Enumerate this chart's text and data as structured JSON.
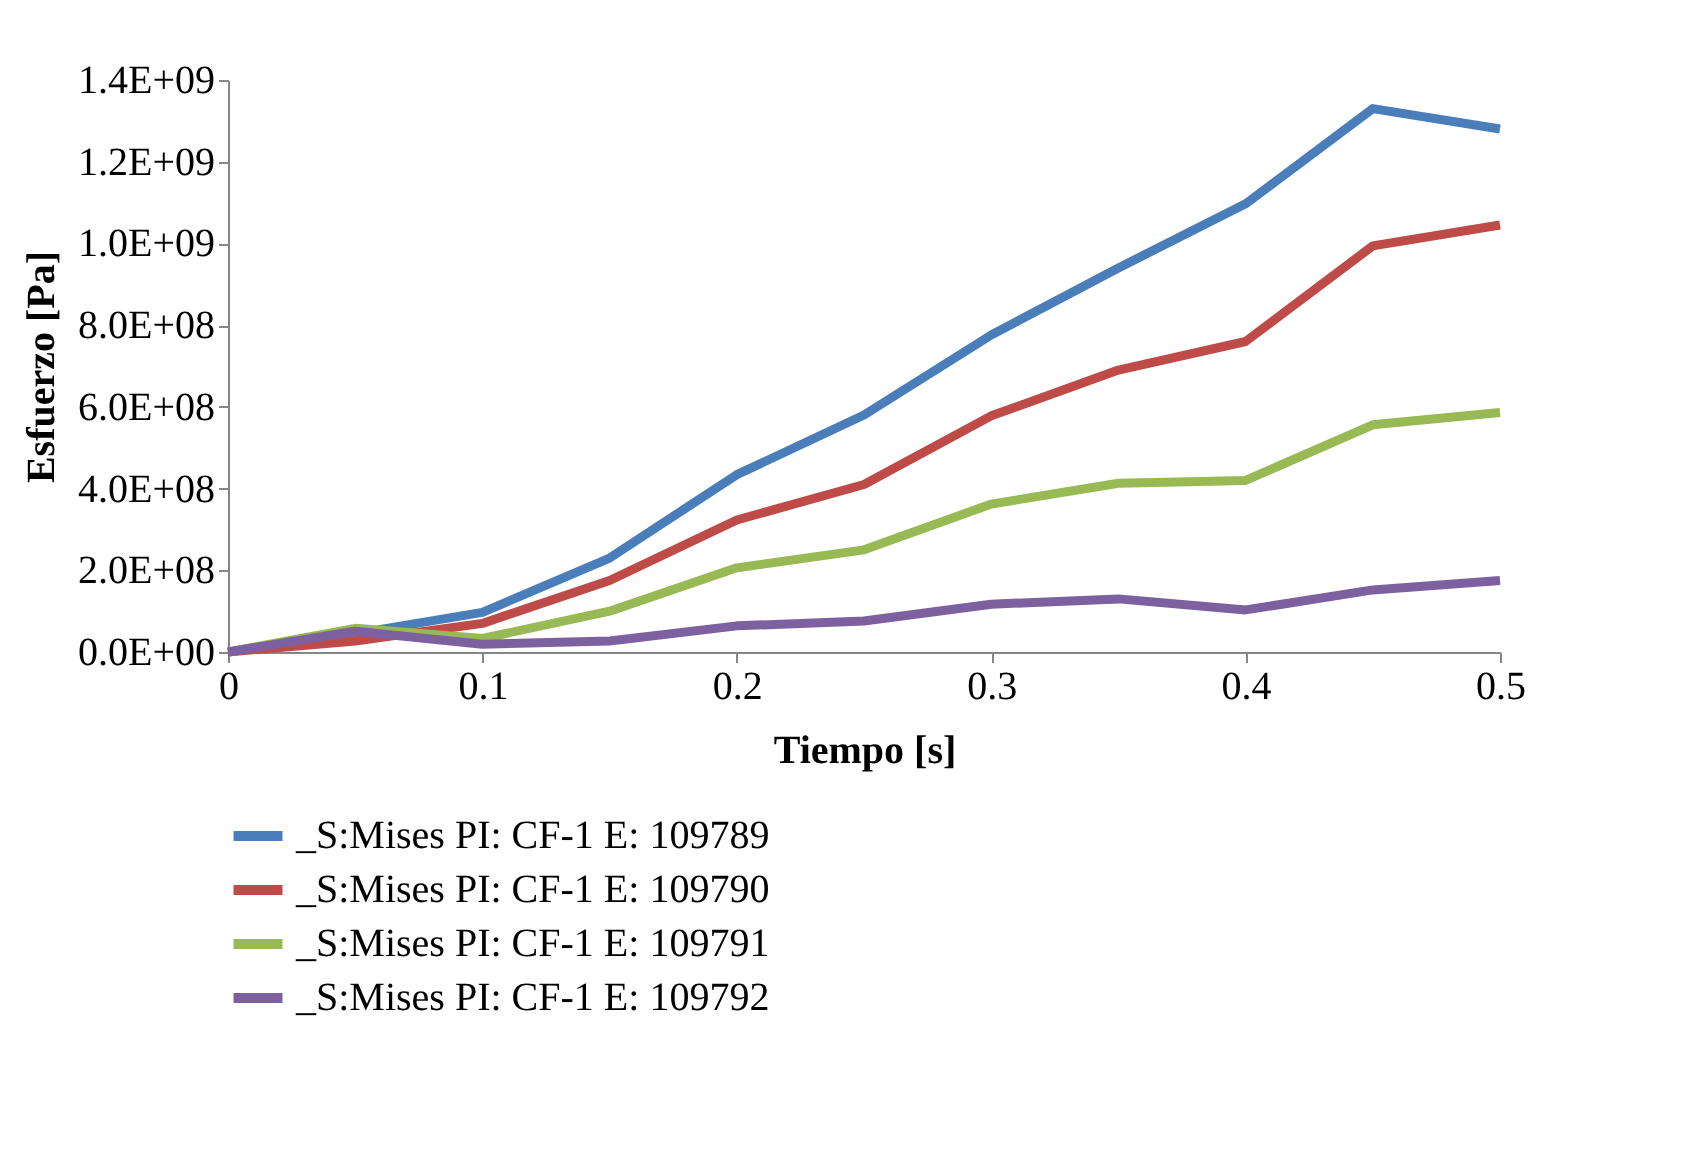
{
  "chart_data": {
    "type": "line",
    "xlabel": "Tiempo [s]",
    "ylabel": "Esfuerzo [Pa]",
    "x": [
      0,
      0.05,
      0.1,
      0.15,
      0.2,
      0.25,
      0.3,
      0.35,
      0.4,
      0.45,
      0.5
    ],
    "series": [
      {
        "name": "_S:Mises PI: CF-1 E: 109789",
        "color": "#4a7ebb",
        "values": [
          0,
          45000000.0,
          97000000.0,
          230000000.0,
          434000000.0,
          580000000.0,
          776000000.0,
          940000000.0,
          1097000000.0,
          1330000000.0,
          1280000000.0
        ]
      },
      {
        "name": "_S:Mises PI: CF-1 E: 109790",
        "color": "#be4b48",
        "values": [
          0,
          27000000.0,
          70000000.0,
          175000000.0,
          323000000.0,
          410000000.0,
          578000000.0,
          690000000.0,
          760000000.0,
          994000000.0,
          1045000000.0
        ]
      },
      {
        "name": "_S:Mises PI: CF-1 E: 109791",
        "color": "#98b954",
        "values": [
          0,
          58000000.0,
          33000000.0,
          100000000.0,
          206000000.0,
          250000000.0,
          362000000.0,
          413000000.0,
          420000000.0,
          556000000.0,
          586000000.0
        ]
      },
      {
        "name": "_S:Mises PI: CF-1 E: 109792",
        "color": "#7d60a0",
        "values": [
          0,
          51000000.0,
          19000000.0,
          27000000.0,
          64000000.0,
          76000000.0,
          117000000.0,
          130000000.0,
          103000000.0,
          152000000.0,
          175000000.0
        ]
      }
    ],
    "xlim": [
      0,
      0.5
    ],
    "xticks": [
      {
        "value": 0,
        "label": "0"
      },
      0.1,
      0.2,
      0.3,
      0.4,
      0.5
    ],
    "ylim": [
      0,
      1400000000.0
    ],
    "yticks": [
      {
        "value": 0,
        "label": "0.0E+00"
      },
      {
        "value": 200000000.0,
        "label": "2.0E+08"
      },
      {
        "value": 400000000.0,
        "label": "4.0E+08"
      },
      {
        "value": 600000000.0,
        "label": "6.0E+08"
      },
      {
        "value": 800000000.0,
        "label": "8.0E+08"
      },
      {
        "value": 1000000000.0,
        "label": "1.0E+09"
      },
      {
        "value": 1200000000.0,
        "label": "1.2E+09"
      },
      {
        "value": 1400000000.0,
        "label": "1.4E+09"
      }
    ],
    "grid": false,
    "legend": "bottom",
    "marker": "none",
    "line_style": "solid"
  }
}
